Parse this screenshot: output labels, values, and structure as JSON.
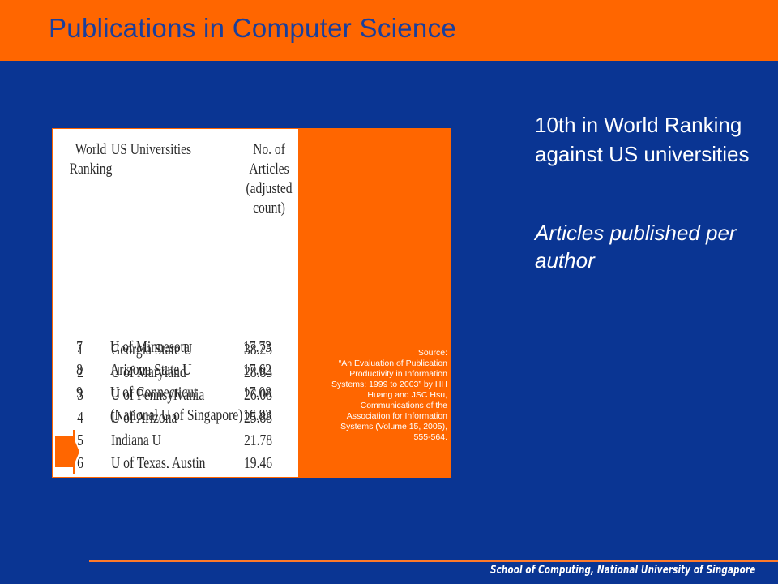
{
  "slide": {
    "title": "Publications in Computer Science",
    "footer": "School of Computing, National University of Singapore"
  },
  "table": {
    "headers": {
      "rank": "World\nRanking",
      "university": "US Universities",
      "articles": "No. of Articles\n(adjusted\ncount)"
    },
    "rows": [
      {
        "rank": "1",
        "university": "Georgia State U",
        "articles": "38.25"
      },
      {
        "rank": "2",
        "university": "U of Maryland",
        "articles": "28.83"
      },
      {
        "rank": "3",
        "university": "U of Pennsylvania",
        "articles": "26.08"
      },
      {
        "rank": "4",
        "university": "U of Arizona",
        "articles": "25.88"
      },
      {
        "rank": "5",
        "university": "Indiana U",
        "articles": "21.78"
      },
      {
        "rank": "6",
        "university": "U of Texas, Austin",
        "articles": "19.46"
      },
      {
        "rank": "7",
        "university": "U of Minnesota",
        "articles": "17.73"
      },
      {
        "rank": "8",
        "university": "Arizona State U",
        "articles": "17.62"
      },
      {
        "rank": "9",
        "university": "U of Connecticut",
        "articles": "17.08"
      },
      {
        "rank": "",
        "university": "(National U of Singapore)",
        "articles": "16.83"
      }
    ]
  },
  "source": {
    "lines": [
      "Source:",
      "“An Evaluation of Publication",
      "Productivity in Information",
      "Systems: 1999 to 2003” by HH",
      "Huang and JSC Hsu,",
      "Communications of the",
      "Association for Information",
      "Systems (Volume 15, 2005),",
      "555-564."
    ]
  },
  "highlights": {
    "ranking": "10th in World Ranking against US universities",
    "metric": "Articles published per author"
  },
  "colors": {
    "background": "#0a3593",
    "accent": "#ff6600",
    "title": "#1a3f9c"
  }
}
